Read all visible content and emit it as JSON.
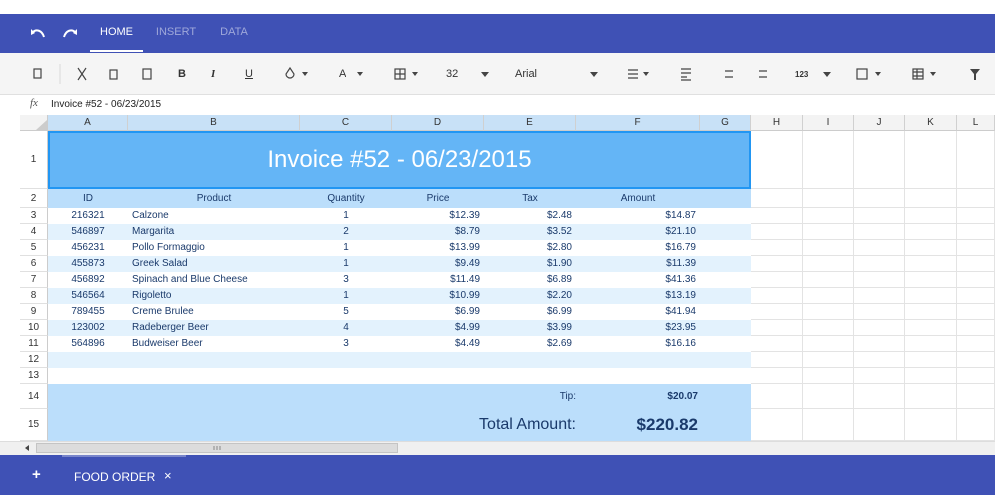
{
  "ribbon": {
    "tabs": [
      "HOME",
      "INSERT",
      "DATA"
    ]
  },
  "toolbar": {
    "bold": "B",
    "italic": "I",
    "underline": "U",
    "font_color": "A",
    "font_size": "32",
    "font_family": "Arial",
    "number_format": "123"
  },
  "formula_bar": {
    "label": "fx",
    "content": "Invoice #52 - 06/23/2015"
  },
  "columns": [
    "A",
    "B",
    "C",
    "D",
    "E",
    "F",
    "G",
    "H",
    "I",
    "J",
    "K",
    "L"
  ],
  "rows": [
    1,
    2,
    3,
    4,
    5,
    6,
    7,
    8,
    9,
    10,
    11,
    12,
    13,
    14,
    15
  ],
  "sheet": {
    "title": "Invoice #52 - 06/23/2015",
    "headers": [
      "ID",
      "Product",
      "Quantity",
      "Price",
      "Tax",
      "Amount"
    ],
    "items": [
      [
        "216321",
        "Calzone",
        1,
        "$12.39",
        "$2.48",
        "$14.87"
      ],
      [
        "546897",
        "Margarita",
        2,
        "$8.79",
        "$3.52",
        "$21.10"
      ],
      [
        "456231",
        "Pollo Formaggio",
        1,
        "$13.99",
        "$2.80",
        "$16.79"
      ],
      [
        "455873",
        "Greek Salad",
        1,
        "$9.49",
        "$1.90",
        "$11.39"
      ],
      [
        "456892",
        "Spinach and Blue Cheese",
        3,
        "$11.49",
        "$6.89",
        "$41.36"
      ],
      [
        "546564",
        "Rigoletto",
        1,
        "$10.99",
        "$2.20",
        "$13.19"
      ],
      [
        "789455",
        "Creme Brulee",
        5,
        "$6.99",
        "$6.99",
        "$41.94"
      ],
      [
        "123002",
        "Radeberger Beer",
        4,
        "$4.99",
        "$3.99",
        "$23.95"
      ],
      [
        "564896",
        "Budweiser Beer",
        3,
        "$4.49",
        "$2.69",
        "$16.16"
      ]
    ],
    "tip_label": "Tip:",
    "tip": "$20.07",
    "total_label": "Total Amount:",
    "total": "$220.82"
  },
  "sheet_tabs": {
    "add": "+",
    "name": "FOOD ORDER",
    "close": "×"
  }
}
